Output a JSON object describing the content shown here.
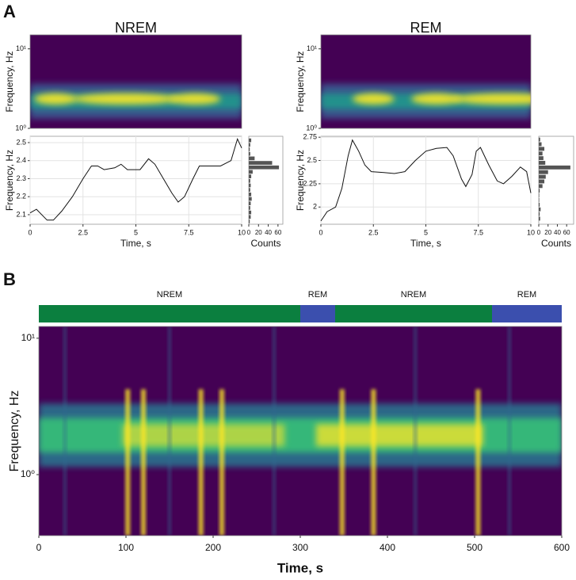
{
  "panel_labels": [
    "A",
    "B"
  ],
  "chart_data": [
    {
      "type": "spectrogram",
      "title": "NREM",
      "ylabel": "Frequency, Hz",
      "log_y": true,
      "ylim": [
        1,
        15
      ],
      "yticks": [
        {
          "value": 1,
          "label": "10⁰"
        },
        {
          "value": 10,
          "label": "10¹"
        }
      ]
    },
    {
      "type": "line",
      "xlabel": "Time, s",
      "ylabel": "Frequency, Hz",
      "color": "#111111",
      "grid": true,
      "xlim": [
        0,
        10
      ],
      "xticks": [
        0,
        2.5,
        5,
        7.5,
        10
      ],
      "ylim": [
        2.047,
        2.535
      ],
      "yticks": [
        2.1,
        2.2,
        2.3,
        2.4,
        2.5
      ],
      "x": [
        0,
        0.3,
        0.8,
        1.1,
        1.5,
        2,
        2.5,
        2.9,
        3.2,
        3.5,
        4,
        4.3,
        4.6,
        5.2,
        5.6,
        5.9,
        6.3,
        6.7,
        7,
        7.3,
        7.7,
        8,
        8.5,
        9,
        9.5,
        9.8,
        10
      ],
      "values": [
        2.11,
        2.13,
        2.07,
        2.07,
        2.12,
        2.2,
        2.3,
        2.37,
        2.37,
        2.35,
        2.36,
        2.38,
        2.35,
        2.35,
        2.41,
        2.38,
        2.3,
        2.22,
        2.17,
        2.2,
        2.3,
        2.37,
        2.37,
        2.37,
        2.4,
        2.52,
        2.47
      ]
    },
    {
      "type": "histogram",
      "orientation": "horizontal",
      "xlabel": "Counts",
      "color": "#555555",
      "xlim": [
        0,
        70
      ],
      "xticks": [
        0,
        20,
        40,
        60
      ],
      "ylim": [
        2.047,
        2.535
      ],
      "bins": [
        2.05,
        2.075,
        2.1,
        2.125,
        2.15,
        2.175,
        2.2,
        2.225,
        2.25,
        2.275,
        2.3,
        2.325,
        2.35,
        2.375,
        2.4,
        2.425,
        2.45,
        2.475,
        2.5,
        2.525
      ],
      "values": [
        2,
        4,
        5,
        3,
        4,
        6,
        5,
        3,
        4,
        3,
        5,
        8,
        62,
        48,
        12,
        3,
        2,
        3,
        5
      ]
    },
    {
      "type": "spectrogram",
      "title": "REM",
      "ylabel": "Frequency, Hz",
      "log_y": true,
      "ylim": [
        1,
        15
      ],
      "yticks": [
        {
          "value": 1,
          "label": "10⁰"
        },
        {
          "value": 10,
          "label": "10¹"
        }
      ]
    },
    {
      "type": "line",
      "xlabel": "Time, s",
      "ylabel": "Frequency, Hz",
      "color": "#111111",
      "grid": true,
      "xlim": [
        0,
        10
      ],
      "xticks": [
        0,
        2.5,
        5,
        7.5,
        10
      ],
      "ylim": [
        1.815,
        2.76
      ],
      "yticks": [
        2,
        2.25,
        2.5,
        2.75
      ],
      "x": [
        0,
        0.3,
        0.7,
        1,
        1.3,
        1.5,
        1.8,
        2.1,
        2.4,
        3,
        3.5,
        4,
        4.5,
        5,
        5.5,
        6,
        6.3,
        6.7,
        6.9,
        7.2,
        7.4,
        7.6,
        8,
        8.4,
        8.7,
        9.1,
        9.5,
        9.8,
        10
      ],
      "values": [
        1.85,
        1.95,
        2,
        2.2,
        2.55,
        2.72,
        2.6,
        2.45,
        2.38,
        2.37,
        2.36,
        2.38,
        2.5,
        2.6,
        2.63,
        2.64,
        2.55,
        2.3,
        2.22,
        2.35,
        2.6,
        2.64,
        2.45,
        2.28,
        2.25,
        2.33,
        2.43,
        2.38,
        2.15
      ]
    },
    {
      "type": "histogram",
      "orientation": "horizontal",
      "xlabel": "Counts",
      "color": "#555555",
      "xlim": [
        0,
        75
      ],
      "xticks": [
        0,
        20,
        40,
        60
      ],
      "ylim": [
        1.815,
        2.76
      ],
      "bins": [
        1.85,
        1.9,
        1.95,
        2,
        2.05,
        2.1,
        2.15,
        2.2,
        2.25,
        2.3,
        2.35,
        2.4,
        2.45,
        2.5,
        2.55,
        2.6,
        2.65,
        2.7,
        2.75
      ],
      "values": [
        3,
        2,
        4,
        2,
        1,
        1,
        2,
        8,
        12,
        15,
        20,
        68,
        14,
        10,
        8,
        12,
        6,
        3
      ]
    },
    {
      "type": "hypnogram",
      "xlim": [
        0,
        600
      ],
      "segments": [
        {
          "label": "NREM",
          "start": 0,
          "end": 300,
          "color": "#0b7f3f"
        },
        {
          "label": "REM",
          "start": 300,
          "end": 340,
          "color": "#3b4fae"
        },
        {
          "label": "NREM",
          "start": 340,
          "end": 520,
          "color": "#0b7f3f"
        },
        {
          "label": "REM",
          "start": 520,
          "end": 600,
          "color": "#3b4fae"
        }
      ]
    },
    {
      "type": "spectrogram",
      "xlabel": "Time, s",
      "ylabel": "Frequency, Hz",
      "log_y": true,
      "xlim": [
        0,
        600
      ],
      "xticks": [
        0,
        100,
        200,
        300,
        400,
        500,
        600
      ],
      "ylim": [
        0.357,
        12.2
      ],
      "yticks": [
        {
          "value": 1,
          "label": "10⁰"
        },
        {
          "value": 10,
          "label": "10¹"
        }
      ]
    }
  ]
}
